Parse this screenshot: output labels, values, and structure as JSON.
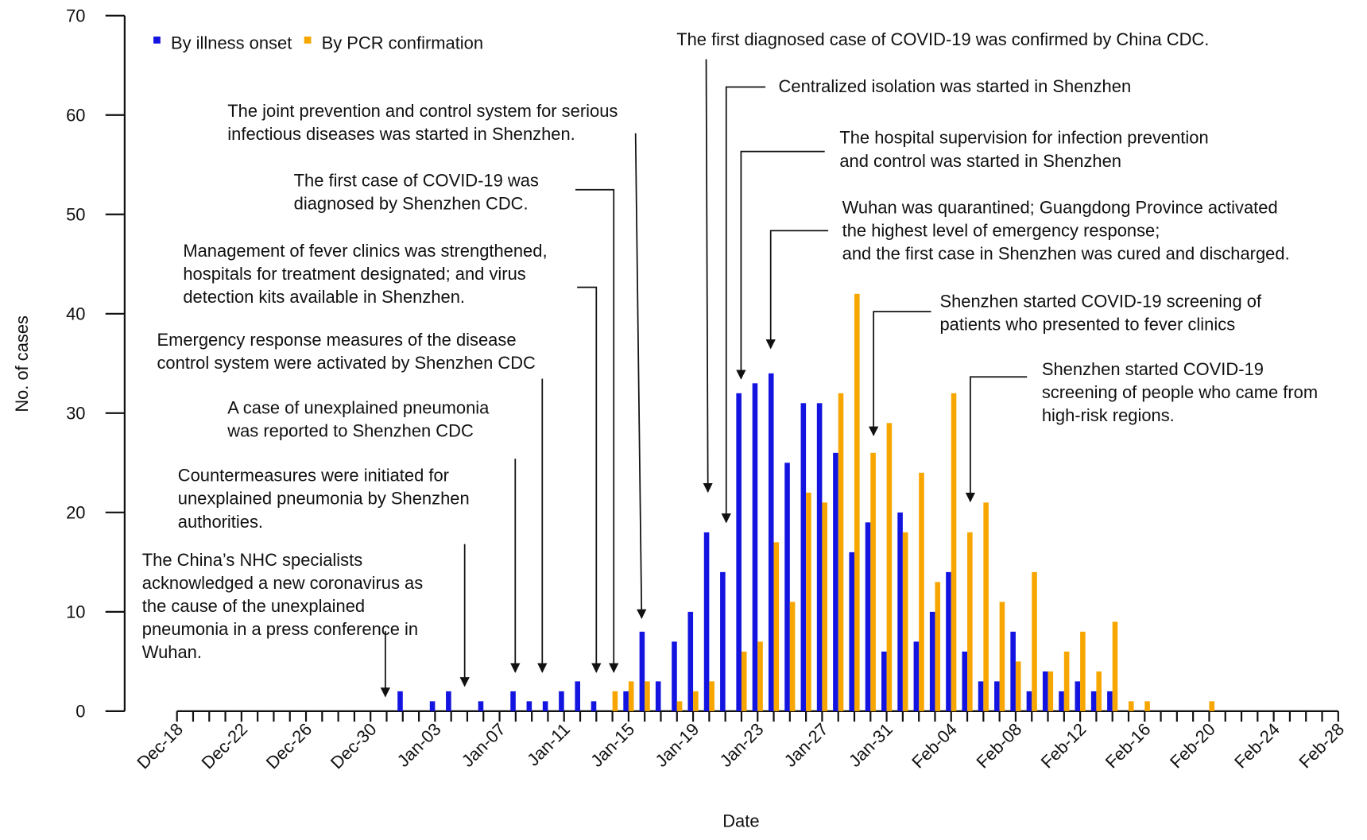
{
  "chart_data": {
    "type": "bar",
    "x_label": "Date",
    "y_label": "No. of cases",
    "categories": [
      "Dec-18",
      null,
      null,
      null,
      "Dec-22",
      null,
      null,
      null,
      "Dec-26",
      null,
      null,
      null,
      "Dec-30",
      null,
      null,
      null,
      "Jan-03",
      null,
      null,
      null,
      "Jan-07",
      null,
      null,
      null,
      "Jan-11",
      null,
      null,
      null,
      "Jan-15",
      null,
      null,
      null,
      "Jan-19",
      null,
      null,
      null,
      "Jan-23",
      null,
      null,
      null,
      "Jan-27",
      null,
      null,
      null,
      "Jan-31",
      null,
      null,
      null,
      "Feb-04",
      null,
      null,
      null,
      "Feb-08",
      null,
      null,
      null,
      "Feb-12",
      null,
      null,
      null,
      "Feb-16",
      null,
      null,
      null,
      "Feb-20",
      null,
      null,
      null,
      "Feb-24",
      null,
      null,
      null,
      "Feb-28"
    ],
    "series": [
      {
        "name": "By illness onset",
        "color": "#1414e0",
        "values": [
          0,
          0,
          0,
          0,
          0,
          0,
          0,
          0,
          0,
          0,
          0,
          0,
          0,
          0,
          2,
          0,
          1,
          2,
          0,
          1,
          0,
          2,
          1,
          1,
          2,
          3,
          1,
          0,
          2,
          8,
          3,
          7,
          10,
          18,
          14,
          32,
          33,
          34,
          25,
          31,
          31,
          26,
          16,
          19,
          6,
          20,
          7,
          10,
          14,
          6,
          3,
          3,
          8,
          2,
          4,
          2,
          3,
          2,
          2,
          0,
          0,
          0,
          0,
          0,
          0,
          0,
          0,
          0,
          0,
          0,
          0,
          0,
          0
        ]
      },
      {
        "name": "By PCR confirmation",
        "color": "#f7a600",
        "values": [
          0,
          0,
          0,
          0,
          0,
          0,
          0,
          0,
          0,
          0,
          0,
          0,
          0,
          0,
          0,
          0,
          0,
          0,
          0,
          0,
          0,
          0,
          0,
          0,
          0,
          0,
          0,
          2,
          3,
          3,
          0,
          1,
          2,
          3,
          0,
          6,
          7,
          17,
          11,
          22,
          21,
          32,
          42,
          26,
          29,
          18,
          24,
          13,
          32,
          18,
          21,
          11,
          5,
          14,
          4,
          6,
          8,
          4,
          9,
          1,
          1,
          0,
          0,
          0,
          1,
          0,
          0,
          0,
          0,
          0,
          0,
          0,
          0
        ]
      }
    ],
    "ylim": [
      0,
      70
    ],
    "yticks": [
      0,
      10,
      20,
      30,
      40,
      50,
      60,
      70
    ],
    "legend": "top-left",
    "annotations": [
      [
        "The China’s NHC specialists",
        "acknowledged a new coronavirus as",
        "the cause of the unexplained",
        "pneumonia in a press conference in",
        "Wuhan."
      ],
      [
        "Countermeasures were initiated for",
        "unexplained pneumonia by Shenzhen",
        "authorities."
      ],
      [
        "A case of unexplained pneumonia",
        "was reported to Shenzhen CDC"
      ],
      [
        "Emergency response measures of the disease",
        "control system were activated by Shenzhen CDC"
      ],
      [
        "Management of fever clinics was strengthened,",
        "hospitals for treatment designated; and virus",
        "detection kits available in Shenzhen."
      ],
      [
        "The first case of COVID-19 was",
        "diagnosed by Shenzhen CDC."
      ],
      [
        "The joint prevention and control system for serious",
        "infectious diseases was started in Shenzhen."
      ],
      [
        "The first diagnosed case of COVID-19 was confirmed by China CDC."
      ],
      [
        "Centralized isolation was started in Shenzhen"
      ],
      [
        "The hospital supervision for infection prevention",
        "and control was started in Shenzhen"
      ],
      [
        "Wuhan was quarantined; Guangdong Province activated",
        "the highest level of emergency response;",
        "and the first case in Shenzhen was cured and discharged."
      ],
      [
        "Shenzhen started COVID-19 screening of",
        "patients who presented to fever clinics"
      ],
      [
        "Shenzhen started COVID-19",
        "screening of people who came from",
        "high-risk regions."
      ]
    ]
  }
}
